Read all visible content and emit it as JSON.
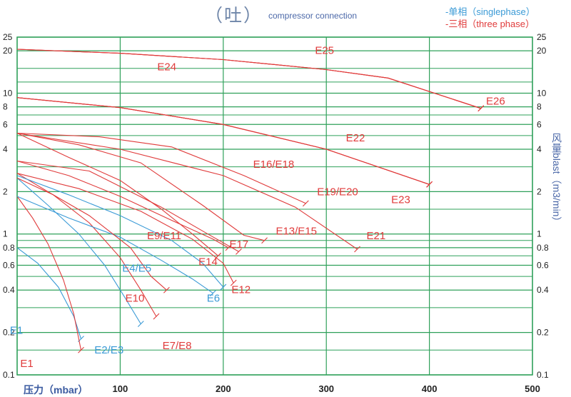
{
  "header": {
    "title": "（吐）",
    "subtitle": "compressor connection",
    "legend_single": "-单相（singlephase）",
    "legend_three": "-三相（three phase）"
  },
  "colors": {
    "grid": "#2fa05a",
    "three_phase": "#e03b3b",
    "single_phase": "#3a9ad6",
    "axis_text": "#222222"
  },
  "chart_data": {
    "type": "line",
    "title": "（吐）",
    "subtitle": "compressor connection",
    "xlabel": "压力（mbar）",
    "ylabel": "风量blast（m3/min）",
    "xlim": [
      0,
      500
    ],
    "ylim": [
      0.1,
      25
    ],
    "y_scale": "log",
    "grid": true,
    "legend": [
      {
        "name": "-单相（singlephase）",
        "color": "#3a9ad6"
      },
      {
        "name": "-三相（three phase）",
        "color": "#e03b3b"
      }
    ],
    "x_ticks": [
      {
        "value": 0,
        "label": "0"
      },
      {
        "value": 100,
        "label": "100"
      },
      {
        "value": 200,
        "label": "200"
      },
      {
        "value": 300,
        "label": "300"
      },
      {
        "value": 400,
        "label": "400"
      },
      {
        "value": 500,
        "label": "500"
      }
    ],
    "y_ticks": [
      {
        "value": 25,
        "label": "25"
      },
      {
        "value": 20,
        "label": "20"
      },
      {
        "value": 10,
        "label": "10"
      },
      {
        "value": 8,
        "label": "8"
      },
      {
        "value": 6,
        "label": "6"
      },
      {
        "value": 4,
        "label": "4"
      },
      {
        "value": 2,
        "label": "2"
      },
      {
        "value": 1,
        "label": "1"
      },
      {
        "value": 0.8,
        "label": "0.8"
      },
      {
        "value": 0.6,
        "label": "0.6"
      },
      {
        "value": 0.4,
        "label": "0.4"
      },
      {
        "value": 0.2,
        "label": "0.2"
      },
      {
        "value": 0.1,
        "label": "0.1"
      }
    ],
    "series": [
      {
        "name": "E1",
        "phase": "single",
        "points": [
          [
            0,
            0.8
          ],
          [
            20,
            0.62
          ],
          [
            40,
            0.42
          ],
          [
            55,
            0.26
          ],
          [
            62,
            0.18
          ]
        ]
      },
      {
        "name": "E1",
        "phase": "three",
        "points": [
          [
            0,
            1.85
          ],
          [
            15,
            1.3
          ],
          [
            30,
            0.85
          ],
          [
            45,
            0.47
          ],
          [
            55,
            0.27
          ],
          [
            62,
            0.15
          ]
        ]
      },
      {
        "name": "E2/E3",
        "phase": "single",
        "points": [
          [
            0,
            2.5
          ],
          [
            30,
            1.6
          ],
          [
            60,
            1.0
          ],
          [
            85,
            0.6
          ],
          [
            105,
            0.35
          ],
          [
            120,
            0.23
          ]
        ]
      },
      {
        "name": "E7/E8",
        "phase": "three",
        "points": [
          [
            0,
            2.7
          ],
          [
            35,
            1.9
          ],
          [
            70,
            1.2
          ],
          [
            100,
            0.68
          ],
          [
            120,
            0.4
          ],
          [
            135,
            0.26
          ]
        ]
      },
      {
        "name": "E4/E5",
        "phase": "single",
        "points": [
          [
            0,
            1.85
          ],
          [
            50,
            1.3
          ],
          [
            100,
            0.95
          ],
          [
            140,
            0.65
          ],
          [
            170,
            0.48
          ],
          [
            190,
            0.38
          ]
        ]
      },
      {
        "name": "E10",
        "phase": "three",
        "points": [
          [
            0,
            2.5
          ],
          [
            35,
            1.9
          ],
          [
            70,
            1.35
          ],
          [
            110,
            0.8
          ],
          [
            130,
            0.5
          ],
          [
            145,
            0.4
          ]
        ]
      },
      {
        "name": "E6",
        "phase": "single",
        "points": [
          [
            0,
            2.6
          ],
          [
            50,
            1.9
          ],
          [
            100,
            1.35
          ],
          [
            150,
            0.9
          ],
          [
            180,
            0.62
          ],
          [
            200,
            0.42
          ]
        ]
      },
      {
        "name": "E12",
        "phase": "three",
        "points": [
          [
            0,
            2.7
          ],
          [
            60,
            2.1
          ],
          [
            120,
            1.45
          ],
          [
            170,
            0.92
          ],
          [
            200,
            0.62
          ],
          [
            210,
            0.45
          ]
        ]
      },
      {
        "name": "E9/E11",
        "phase": "three",
        "points": [
          [
            0,
            3.3
          ],
          [
            50,
            2.6
          ],
          [
            100,
            1.85
          ],
          [
            150,
            1.25
          ],
          [
            190,
            0.92
          ],
          [
            205,
            0.8
          ]
        ]
      },
      {
        "name": "E14",
        "phase": "three",
        "points": [
          [
            0,
            5.2
          ],
          [
            50,
            3.5
          ],
          [
            100,
            2.4
          ],
          [
            140,
            1.5
          ],
          [
            170,
            1.0
          ],
          [
            195,
            0.7
          ]
        ]
      },
      {
        "name": "E17",
        "phase": "three",
        "points": [
          [
            0,
            3.3
          ],
          [
            70,
            2.8
          ],
          [
            140,
            1.55
          ],
          [
            185,
            1.0
          ],
          [
            215,
            0.75
          ]
        ]
      },
      {
        "name": "E13/E15",
        "phase": "three",
        "points": [
          [
            0,
            5.2
          ],
          [
            60,
            4.3
          ],
          [
            120,
            3.2
          ],
          [
            180,
            1.6
          ],
          [
            220,
            0.98
          ],
          [
            240,
            0.9
          ]
        ]
      },
      {
        "name": "E21",
        "phase": "three",
        "points": [
          [
            0,
            5.2
          ],
          [
            100,
            4.0
          ],
          [
            200,
            2.6
          ],
          [
            270,
            1.55
          ],
          [
            330,
            0.78
          ]
        ]
      },
      {
        "name": "E16/E18",
        "phase": "three",
        "points": [
          [
            0,
            5.2
          ],
          [
            80,
            4.9
          ],
          [
            150,
            4.15
          ],
          [
            220,
            2.6
          ],
          [
            280,
            1.65
          ]
        ]
      },
      {
        "name": "E19/E20",
        "phase": "three",
        "points": [
          [
            0,
            9.3
          ],
          [
            100,
            7.9
          ],
          [
            200,
            6.0
          ],
          [
            300,
            4.0
          ],
          [
            400,
            2.25
          ]
        ]
      },
      {
        "name": "E22",
        "phase": "three",
        "points": [
          [
            0,
            9.3
          ],
          [
            100,
            7.9
          ],
          [
            200,
            6.0
          ],
          [
            300,
            4.0
          ],
          [
            400,
            2.25
          ]
        ]
      },
      {
        "name": "E23",
        "phase": "three",
        "points": [
          [
            0,
            9.3
          ],
          [
            100,
            7.9
          ],
          [
            200,
            6.0
          ],
          [
            300,
            4.0
          ],
          [
            400,
            2.25
          ]
        ]
      },
      {
        "name": "E24",
        "phase": "three",
        "points": [
          [
            0,
            20.5
          ],
          [
            100,
            19.2
          ],
          [
            200,
            17.3
          ],
          [
            300,
            14.7
          ],
          [
            360,
            12.8
          ],
          [
            450,
            7.8
          ]
        ]
      },
      {
        "name": "E25",
        "phase": "three",
        "points": [
          [
            0,
            20.5
          ],
          [
            100,
            19.2
          ],
          [
            200,
            17.3
          ],
          [
            300,
            14.7
          ],
          [
            360,
            12.8
          ],
          [
            450,
            7.8
          ]
        ]
      },
      {
        "name": "E26",
        "phase": "three",
        "points": [
          [
            0,
            20.5
          ],
          [
            100,
            19.2
          ],
          [
            200,
            17.3
          ],
          [
            300,
            14.7
          ],
          [
            360,
            12.8
          ],
          [
            450,
            7.8
          ]
        ]
      }
    ],
    "annotations": [
      {
        "text": "E1",
        "color": "single",
        "x": -7,
        "y": 0.196
      },
      {
        "text": "E1",
        "color": "three",
        "x": 3,
        "y": 0.114
      },
      {
        "text": "E2/E3",
        "color": "single",
        "x": 75,
        "y": 0.142
      },
      {
        "text": "E7/E8",
        "color": "three",
        "x": 141,
        "y": 0.152
      },
      {
        "text": "E10",
        "color": "three",
        "x": 105,
        "y": 0.33
      },
      {
        "text": "E4/E5",
        "color": "single",
        "x": 102,
        "y": 0.54
      },
      {
        "text": "E6",
        "color": "single",
        "x": 184,
        "y": 0.33
      },
      {
        "text": "E12",
        "color": "three",
        "x": 208,
        "y": 0.38
      },
      {
        "text": "E14",
        "color": "three",
        "x": 176,
        "y": 0.6
      },
      {
        "text": "E9/E11",
        "color": "three",
        "x": 126,
        "y": 0.92
      },
      {
        "text": "E17",
        "color": "three",
        "x": 206,
        "y": 0.8
      },
      {
        "text": "E13/E15",
        "color": "three",
        "x": 251,
        "y": 0.99
      },
      {
        "text": "E21",
        "color": "three",
        "x": 339,
        "y": 0.92
      },
      {
        "text": "E16/E18",
        "color": "three",
        "x": 229,
        "y": 2.95
      },
      {
        "text": "E19/E20",
        "color": "three",
        "x": 291,
        "y": 1.88
      },
      {
        "text": "E22",
        "color": "three",
        "x": 319,
        "y": 4.55
      },
      {
        "text": "E23",
        "color": "three",
        "x": 363,
        "y": 1.66
      },
      {
        "text": "E24",
        "color": "three",
        "x": 136,
        "y": 14.5
      },
      {
        "text": "E25",
        "color": "three",
        "x": 289,
        "y": 19.0
      },
      {
        "text": "E26",
        "color": "three",
        "x": 455,
        "y": 8.3
      }
    ]
  },
  "x_axis_label": "压力（mbar）",
  "y_axis_label": "风量blast（m3/min）"
}
